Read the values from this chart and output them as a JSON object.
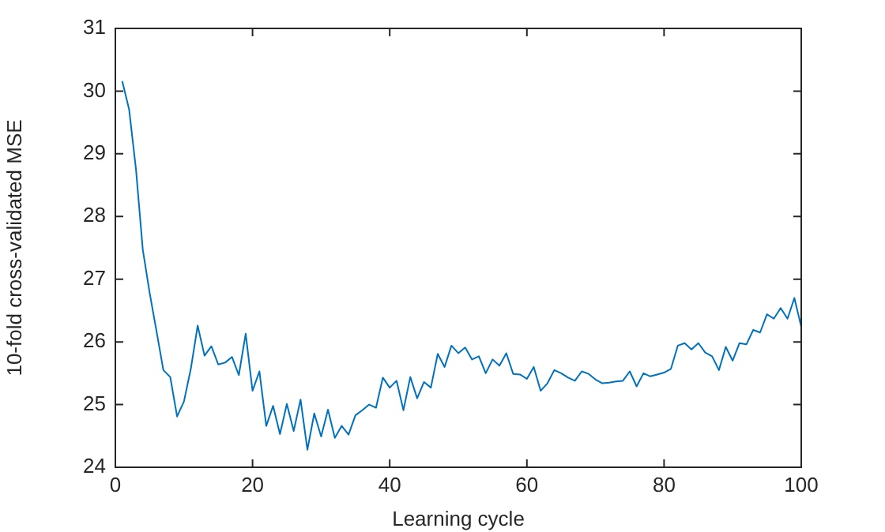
{
  "chart_data": {
    "type": "line",
    "xlabel": "Learning cycle",
    "ylabel": "10-fold cross-validated MSE",
    "x": [
      1,
      2,
      3,
      4,
      5,
      6,
      7,
      8,
      9,
      10,
      11,
      12,
      13,
      14,
      15,
      16,
      17,
      18,
      19,
      20,
      21,
      22,
      23,
      24,
      25,
      26,
      27,
      28,
      29,
      30,
      31,
      32,
      33,
      34,
      35,
      36,
      37,
      38,
      39,
      40,
      41,
      42,
      43,
      44,
      45,
      46,
      47,
      48,
      49,
      50,
      51,
      52,
      53,
      54,
      55,
      56,
      57,
      58,
      59,
      60,
      61,
      62,
      63,
      64,
      65,
      66,
      67,
      68,
      69,
      70,
      71,
      72,
      73,
      74,
      75,
      76,
      77,
      78,
      79,
      80,
      81,
      82,
      83,
      84,
      85,
      86,
      87,
      88,
      89,
      90,
      91,
      92,
      93,
      94,
      95,
      96,
      97,
      98,
      99,
      100
    ],
    "series": [
      {
        "color": "#0072bd",
        "values": [
          30.16,
          29.71,
          28.76,
          27.47,
          26.78,
          26.17,
          25.55,
          25.44,
          24.81,
          25.05,
          25.57,
          26.26,
          25.78,
          25.93,
          25.64,
          25.67,
          25.76,
          25.47,
          26.13,
          25.22,
          25.53,
          24.66,
          24.98,
          24.53,
          25.01,
          24.58,
          25.08,
          24.28,
          24.86,
          24.49,
          24.92,
          24.47,
          24.66,
          24.52,
          24.83,
          24.91,
          25.0,
          24.95,
          25.43,
          25.27,
          25.38,
          24.91,
          25.44,
          25.1,
          25.36,
          25.27,
          25.81,
          25.6,
          25.94,
          25.82,
          25.91,
          25.72,
          25.77,
          25.5,
          25.72,
          25.62,
          25.82,
          25.49,
          25.48,
          25.41,
          25.6,
          25.22,
          25.34,
          25.55,
          25.5,
          25.43,
          25.38,
          25.53,
          25.49,
          25.4,
          25.34,
          25.35,
          25.37,
          25.38,
          25.53,
          25.29,
          25.5,
          25.45,
          25.48,
          25.51,
          25.57,
          25.94,
          25.98,
          25.88,
          25.98,
          25.83,
          25.77,
          25.55,
          25.92,
          25.7,
          25.98,
          25.96,
          26.19,
          26.15,
          26.44,
          26.37,
          26.54,
          26.37,
          26.7,
          26.24
        ]
      }
    ],
    "xlim": [
      0,
      100
    ],
    "xticks": [
      0,
      20,
      40,
      60,
      80,
      100
    ],
    "ylim": [
      24,
      31
    ],
    "yticks": [
      24,
      25,
      26,
      27,
      28,
      29,
      30,
      31
    ],
    "grid": false,
    "legend": false,
    "marker": "none",
    "line_style": "solid"
  }
}
